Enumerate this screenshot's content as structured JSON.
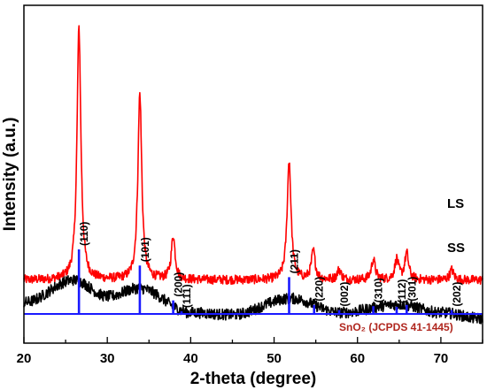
{
  "chart_data": {
    "type": "line",
    "xlabel": "2-theta (degree)",
    "ylabel": "Intensity (a.u.)",
    "xlim": [
      20,
      75
    ],
    "x_ticks": [
      "20",
      "30",
      "40",
      "50",
      "60",
      "70"
    ],
    "y_ticks_shown": false,
    "grid": false,
    "series": [
      {
        "name": "LS",
        "color": "#ff0000",
        "baseline": 0.62,
        "points": [
          [
            20,
            0.62
          ],
          [
            26.6,
            3.1
          ],
          [
            33.9,
            2.45
          ],
          [
            37.9,
            1.05
          ],
          [
            51.8,
            1.8
          ],
          [
            54.7,
            0.9
          ],
          [
            57.8,
            0.72
          ],
          [
            61.9,
            0.82
          ],
          [
            64.7,
            0.82
          ],
          [
            65.9,
            0.88
          ],
          [
            71.3,
            0.72
          ],
          [
            75,
            0.64
          ]
        ]
      },
      {
        "name": "SS",
        "color": "#000000",
        "baseline": 0.38,
        "points": [
          [
            20,
            0.4
          ],
          [
            26,
            0.62
          ],
          [
            30,
            0.46
          ],
          [
            33.8,
            0.54
          ],
          [
            40,
            0.3
          ],
          [
            45,
            0.28
          ],
          [
            52,
            0.44
          ],
          [
            58,
            0.3
          ],
          [
            65,
            0.38
          ],
          [
            70,
            0.3
          ],
          [
            75,
            0.24
          ]
        ]
      }
    ],
    "reference": {
      "label": "SnO₂ (JCPDS 41-1445)",
      "color": "#1a1aff",
      "peaks": [
        {
          "x": 26.6,
          "hkl": "(110)",
          "intensity": 100
        },
        {
          "x": 33.9,
          "hkl": "(101)",
          "intensity": 75
        },
        {
          "x": 37.9,
          "hkl": "(200)",
          "intensity": 21
        },
        {
          "x": 38.9,
          "hkl": "(111)",
          "intensity": 4
        },
        {
          "x": 51.8,
          "hkl": "(211)",
          "intensity": 57
        },
        {
          "x": 54.8,
          "hkl": "(220)",
          "intensity": 14
        },
        {
          "x": 57.8,
          "hkl": "(002)",
          "intensity": 6
        },
        {
          "x": 61.9,
          "hkl": "(310)",
          "intensity": 12
        },
        {
          "x": 64.7,
          "hkl": "(112)",
          "intensity": 11
        },
        {
          "x": 65.9,
          "hkl": "(301)",
          "intensity": 14
        },
        {
          "x": 71.3,
          "hkl": "(202)",
          "intensity": 6
        }
      ]
    }
  }
}
